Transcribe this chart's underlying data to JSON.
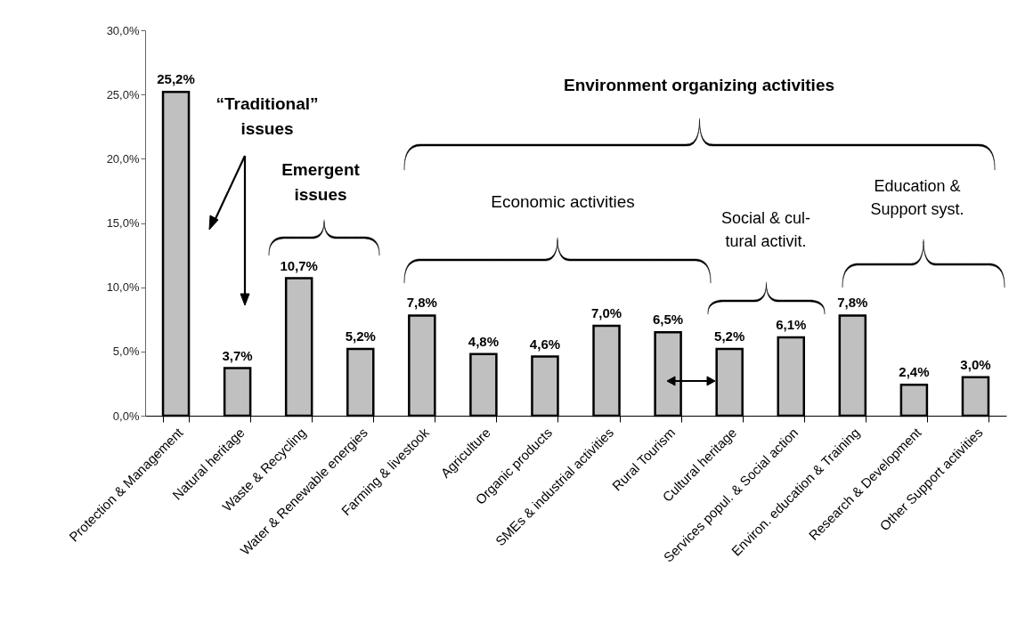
{
  "chart_data": {
    "type": "bar",
    "categories": [
      "Protection & Management",
      "Natural heritage",
      "Waste & Recycling",
      "Water & Renewable energies",
      "Farming & livestook",
      "Agriculture",
      "Organic products",
      "SMEs & industrial activities",
      "Rural Tourism",
      "Cultural heritage",
      "Services popul. & Social action",
      "Environ. education & Training",
      "Research & Development",
      "Other Support activities"
    ],
    "values": [
      25.2,
      3.7,
      10.7,
      5.2,
      7.8,
      4.8,
      4.6,
      7.0,
      6.5,
      5.2,
      6.1,
      7.8,
      2.4,
      3.0
    ],
    "value_labels": [
      "25,2%",
      "3,7%",
      "10,7%",
      "5,2%",
      "7,8%",
      "4,8%",
      "4,6%",
      "7,0%",
      "6,5%",
      "5,2%",
      "6,1%",
      "7,8%",
      "2,4%",
      "3,0%"
    ],
    "color": "#c0c0c0",
    "ylim": [
      0,
      30
    ],
    "yticks": [
      {
        "value": 0,
        "label": "0,0%"
      },
      {
        "value": 5,
        "label": "5,0%"
      },
      {
        "value": 10,
        "label": "10,0%"
      },
      {
        "value": 15,
        "label": "15,0%"
      },
      {
        "value": 20,
        "label": "20,0%"
      },
      {
        "value": 25,
        "label": "25,0%"
      },
      {
        "value": 30,
        "label": "30,0%"
      }
    ],
    "grid": false,
    "annotations": [
      "“Traditional”\nissues",
      "Emergent\nissues",
      "Environment organizing activities",
      "Economic activities",
      "Social & cul-\ntural activit.",
      "Education &\nSupport syst."
    ]
  }
}
